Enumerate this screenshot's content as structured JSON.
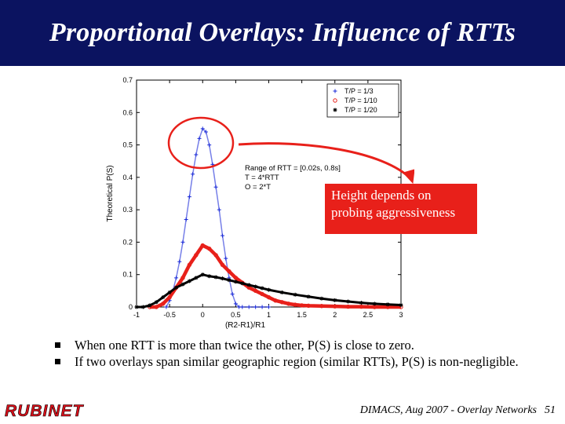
{
  "slide": {
    "title": "Proportional Overlays: Influence of RTTs",
    "callout": {
      "line1": "Height depends on",
      "line2": "probing aggressiveness"
    },
    "bullets": [
      "When one RTT is more than twice the other, P(S) is close to zero.",
      "If two overlays span similar geographic region (similar RTTs), P(S) is non-negligible."
    ],
    "logo": "RUBINET",
    "footer": "DIMACS, Aug 2007 - Overlay Networks",
    "page_number": "51",
    "colors": {
      "title_bar": "#0b1360",
      "callout_bg": "#e8201a",
      "highlight_circle": "#e8201a",
      "series_1": "#1a2ad8",
      "series_2": "#e8201a",
      "series_3": "#000000"
    }
  },
  "chart_data": {
    "type": "scatter",
    "xlabel": "(R2-R1)/R1",
    "ylabel": "Theoretical P(S)",
    "xlim": [
      -1,
      3
    ],
    "ylim": [
      0,
      0.7
    ],
    "xticks": [
      -1,
      -0.5,
      0,
      0.5,
      1,
      1.5,
      2,
      2.5,
      3
    ],
    "xtick_labels": [
      "-1",
      "-0.5",
      "0",
      "0.5",
      "1",
      "1.5",
      "2",
      "2.5",
      "3"
    ],
    "yticks": [
      0,
      0.1,
      0.2,
      0.3,
      0.4,
      0.5,
      0.6,
      0.7
    ],
    "ytick_labels": [
      "0",
      "0.1",
      "0.2",
      "0.3",
      "0.4",
      "0.5",
      "0.6",
      "0.7"
    ],
    "legend_position": "top-right",
    "annotation": [
      "Range of RTT = [0.02s, 0.8s]",
      "T = 4*RTT",
      "O = 2*T"
    ],
    "series": [
      {
        "name": "T/P = 1/3",
        "marker": "+",
        "color": "#1a2ad8",
        "x": [
          -0.55,
          -0.5,
          -0.45,
          -0.4,
          -0.35,
          -0.3,
          -0.25,
          -0.2,
          -0.15,
          -0.1,
          -0.05,
          0,
          0.05,
          0.1,
          0.15,
          0.2,
          0.25,
          0.3,
          0.35,
          0.4,
          0.45,
          0.5,
          0.55,
          0.6,
          0.7,
          0.8,
          0.9,
          1.0
        ],
        "y": [
          0,
          0.02,
          0.05,
          0.09,
          0.14,
          0.2,
          0.27,
          0.34,
          0.41,
          0.47,
          0.52,
          0.55,
          0.54,
          0.5,
          0.44,
          0.37,
          0.3,
          0.22,
          0.15,
          0.09,
          0.04,
          0.01,
          0,
          0,
          0,
          0,
          0,
          0
        ]
      },
      {
        "name": "T/P = 1/10",
        "marker": "o",
        "color": "#e8201a",
        "x": [
          -0.8,
          -0.7,
          -0.6,
          -0.5,
          -0.4,
          -0.3,
          -0.2,
          -0.1,
          0,
          0.1,
          0.2,
          0.3,
          0.4,
          0.5,
          0.6,
          0.7,
          0.8,
          0.9,
          1.0,
          1.1,
          1.2,
          1.3,
          1.4,
          1.5,
          1.6,
          1.8,
          2.0,
          2.2,
          2.4,
          2.6,
          2.8,
          3.0
        ],
        "y": [
          0,
          0,
          0.01,
          0.03,
          0.06,
          0.09,
          0.13,
          0.16,
          0.19,
          0.18,
          0.16,
          0.13,
          0.11,
          0.09,
          0.075,
          0.06,
          0.05,
          0.04,
          0.03,
          0.02,
          0.015,
          0.01,
          0.007,
          0.005,
          0.004,
          0.003,
          0.002,
          0.001,
          0.001,
          0,
          0,
          0
        ]
      },
      {
        "name": "T/P = 1/20",
        "marker": "*",
        "color": "#000000",
        "x": [
          -1.0,
          -0.9,
          -0.8,
          -0.7,
          -0.6,
          -0.5,
          -0.4,
          -0.3,
          -0.2,
          -0.1,
          0,
          0.1,
          0.2,
          0.3,
          0.4,
          0.5,
          0.6,
          0.7,
          0.8,
          0.9,
          1.0,
          1.2,
          1.4,
          1.6,
          1.8,
          2.0,
          2.2,
          2.4,
          2.6,
          2.8,
          3.0
        ],
        "y": [
          0,
          0,
          0.005,
          0.015,
          0.03,
          0.045,
          0.06,
          0.07,
          0.08,
          0.09,
          0.1,
          0.095,
          0.092,
          0.088,
          0.083,
          0.078,
          0.073,
          0.068,
          0.063,
          0.058,
          0.053,
          0.045,
          0.038,
          0.032,
          0.026,
          0.021,
          0.017,
          0.013,
          0.01,
          0.008,
          0.006
        ]
      }
    ]
  }
}
